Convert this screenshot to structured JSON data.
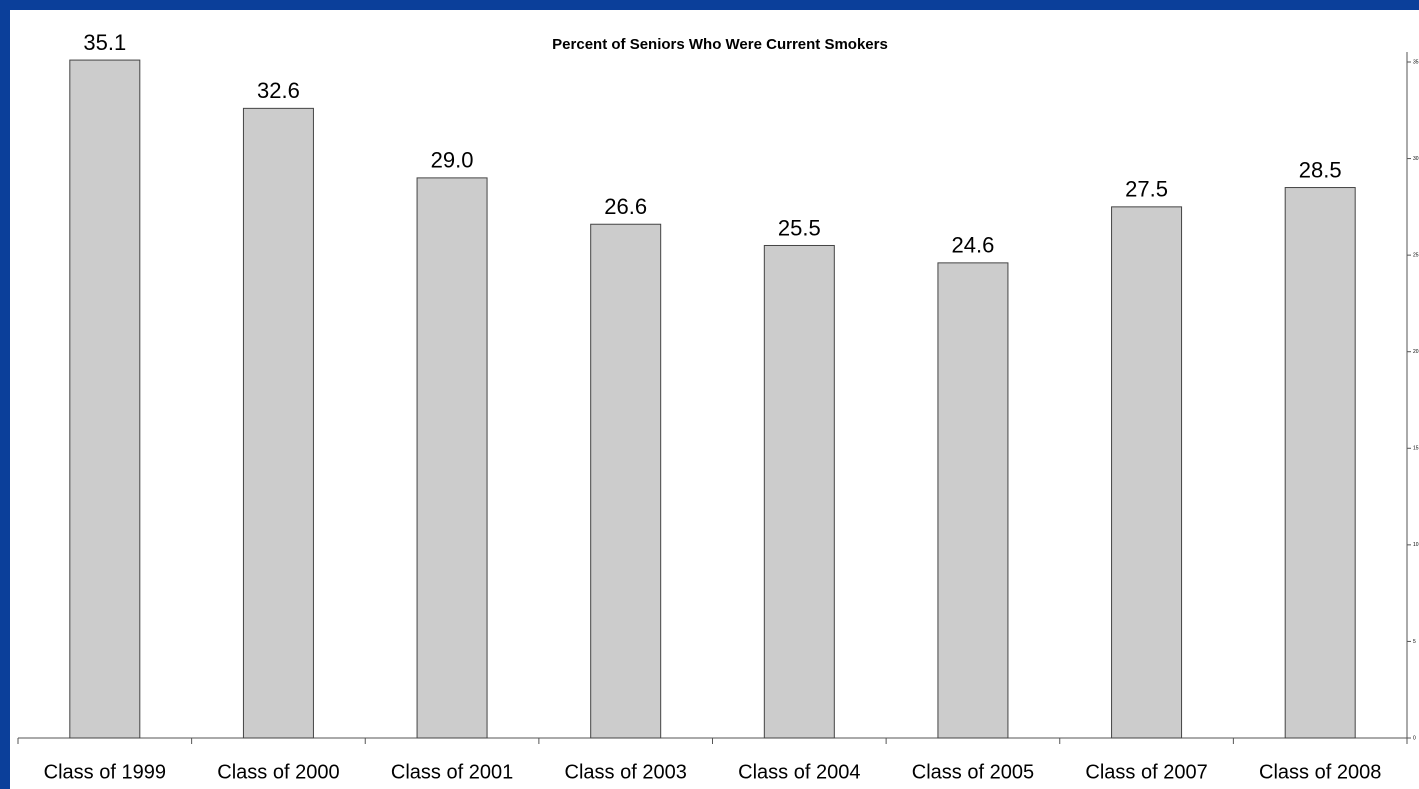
{
  "chart_data": {
    "type": "bar",
    "title": "Percent of Seniors Who Were Current Smokers",
    "categories": [
      "Class of 1999",
      "Class of 2000",
      "Class of 2001",
      "Class of 2003",
      "Class of 2004",
      "Class of 2005",
      "Class of 2007",
      "Class of 2008"
    ],
    "values": [
      35.1,
      32.6,
      29.0,
      26.6,
      25.5,
      24.6,
      27.5,
      28.5
    ],
    "value_labels": [
      "35.1",
      "32.6",
      "29.0",
      "26.6",
      "25.5",
      "24.6",
      "27.5",
      "28.5"
    ],
    "color": "#cccccc",
    "ylim": [
      0,
      35
    ],
    "yticks": [
      0,
      5,
      10,
      15,
      20,
      25,
      30,
      35
    ],
    "grid": false
  }
}
